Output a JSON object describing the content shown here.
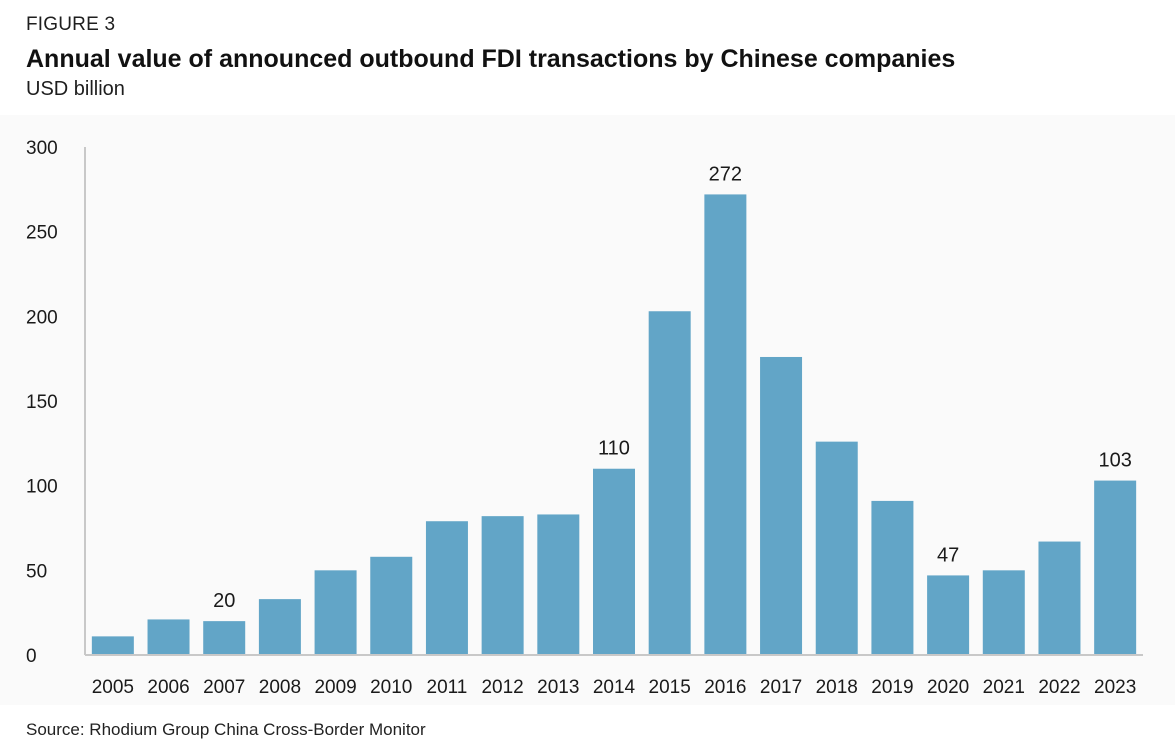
{
  "figure_label": "FIGURE 3",
  "title": "Annual value of announced outbound FDI transactions by Chinese companies",
  "subtitle": "USD billion",
  "source": "Source: Rhodium Group China Cross-Border Monitor",
  "colors": {
    "bar": "#62a5c7",
    "axis": "#c8c8c8",
    "text": "#1a1a1a",
    "plot_background": "#fafafa"
  },
  "chart_data": {
    "type": "bar",
    "categories": [
      "2005",
      "2006",
      "2007",
      "2008",
      "2009",
      "2010",
      "2011",
      "2012",
      "2013",
      "2014",
      "2015",
      "2016",
      "2017",
      "2018",
      "2019",
      "2020",
      "2021",
      "2022",
      "2023"
    ],
    "values": [
      11,
      21,
      20,
      33,
      50,
      58,
      79,
      82,
      83,
      110,
      203,
      272,
      176,
      126,
      91,
      47,
      50,
      67,
      103
    ],
    "data_labels": [
      {
        "category": "2007",
        "label": "20"
      },
      {
        "category": "2014",
        "label": "110"
      },
      {
        "category": "2016",
        "label": "272"
      },
      {
        "category": "2020",
        "label": "47"
      },
      {
        "category": "2023",
        "label": "103"
      }
    ],
    "ylim": [
      0,
      300
    ],
    "yticks": [
      0,
      50,
      100,
      150,
      200,
      250,
      300
    ],
    "xlabel": "",
    "ylabel": "",
    "grid": false,
    "legend": "none"
  }
}
